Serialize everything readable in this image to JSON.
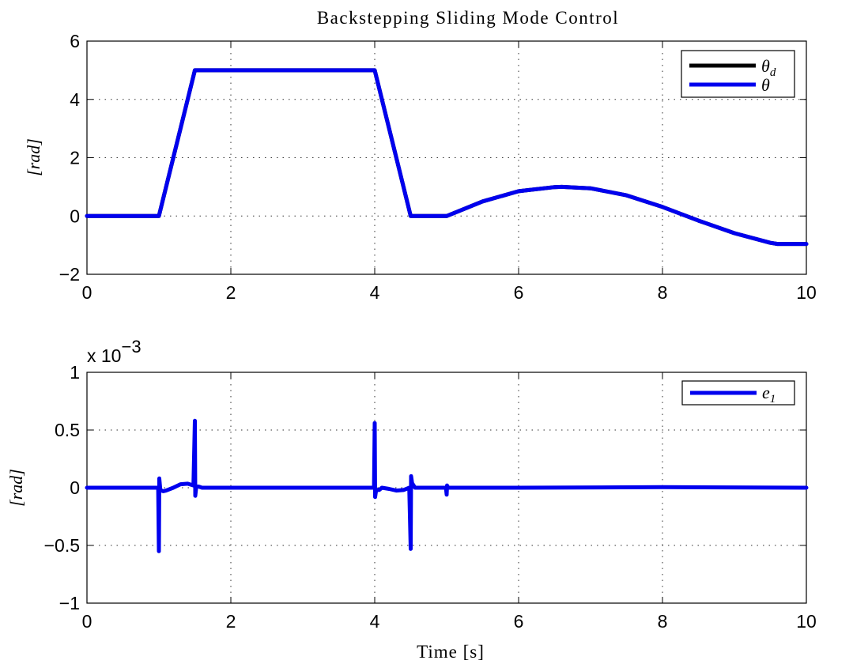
{
  "chart_data": [
    {
      "type": "line",
      "title": "Backstepping Sliding Mode Control",
      "xlabel": "",
      "ylabel": "[rad]",
      "xlim": [
        0,
        10
      ],
      "ylim": [
        -2,
        6
      ],
      "xticks": [
        "0",
        "2",
        "4",
        "6",
        "8",
        "10"
      ],
      "yticks": [
        "−2",
        "0",
        "2",
        "4",
        "6"
      ],
      "grid": true,
      "legend": "top-right",
      "series": [
        {
          "name": "θd",
          "color": "#000000",
          "x": [
            0,
            1.0,
            1.5,
            4.0,
            4.5,
            5.0,
            5.5,
            6.0,
            6.5,
            6.6,
            7.0,
            7.5,
            8.0,
            8.5,
            9.0,
            9.5,
            9.6,
            10.0
          ],
          "y": [
            0,
            0,
            5,
            5,
            0,
            0,
            0.5,
            0.85,
            0.99,
            1.0,
            0.95,
            0.71,
            0.31,
            -0.16,
            -0.59,
            -0.92,
            -0.96,
            -0.96
          ]
        },
        {
          "name": "θ",
          "color": "#0000ee",
          "x": [
            0,
            1.0,
            1.5,
            4.0,
            4.5,
            5.0,
            5.5,
            6.0,
            6.5,
            6.6,
            7.0,
            7.5,
            8.0,
            8.5,
            9.0,
            9.5,
            9.6,
            10.0
          ],
          "y": [
            0,
            0,
            5,
            5,
            0,
            0,
            0.5,
            0.85,
            0.99,
            1.0,
            0.95,
            0.71,
            0.31,
            -0.16,
            -0.59,
            -0.92,
            -0.96,
            -0.96
          ]
        }
      ]
    },
    {
      "type": "line",
      "title": "",
      "xlabel": "Time [s]",
      "ylabel": "[rad]",
      "xlim": [
        0,
        10
      ],
      "ylim": [
        -1,
        1
      ],
      "y_multiplier": "x 10",
      "y_multiplier_exponent": "−3",
      "xticks": [
        "0",
        "2",
        "4",
        "6",
        "8",
        "10"
      ],
      "yticks": [
        "−1",
        "−0.5",
        "0",
        "0.5",
        "1"
      ],
      "grid": true,
      "legend": "top-right",
      "series": [
        {
          "name": "e1",
          "color": "#0000ee",
          "x": [
            0,
            0.99,
            1.0,
            1.005,
            1.02,
            1.06,
            1.1,
            1.2,
            1.3,
            1.4,
            1.48,
            1.5,
            1.505,
            1.52,
            1.55,
            1.6,
            2.0,
            3.9,
            3.99,
            4.0,
            4.005,
            4.02,
            4.06,
            4.1,
            4.2,
            4.3,
            4.4,
            4.48,
            4.5,
            4.505,
            4.52,
            4.56,
            4.7,
            4.99,
            5.0,
            5.005,
            5.02,
            5.1,
            6.0,
            8.0,
            10.0
          ],
          "y": [
            0,
            0,
            -0.55,
            0.08,
            -0.02,
            -0.03,
            -0.025,
            0.0,
            0.03,
            0.035,
            0.02,
            0.58,
            -0.07,
            0.01,
            0.01,
            0.0,
            0.0,
            0.0,
            0.0,
            0.56,
            -0.08,
            -0.02,
            -0.02,
            0.0,
            -0.01,
            -0.025,
            -0.02,
            0.0,
            -0.53,
            0.1,
            0.04,
            0.0,
            0.0,
            0.0,
            -0.06,
            0.02,
            0.0,
            0.0,
            0.0,
            0.005,
            0.0
          ]
        }
      ]
    }
  ]
}
